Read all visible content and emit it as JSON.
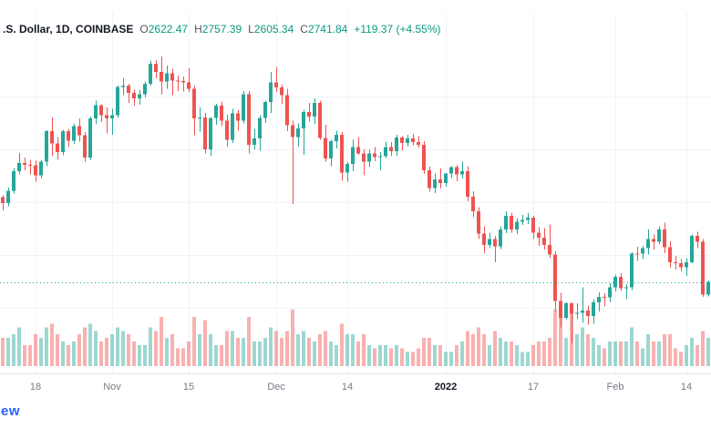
{
  "legend": {
    "symbol_visible": ".S. Dollar, 1D, COINBASE",
    "ohlc": [
      {
        "label": "O",
        "value": "2622.47"
      },
      {
        "label": "H",
        "value": "2757.39"
      },
      {
        "label": "L",
        "value": "2605.34"
      },
      {
        "label": "C",
        "value": "2741.84"
      }
    ],
    "change": "+119.37 (+4.55%)"
  },
  "footer": {
    "logo_partial": "ew"
  },
  "colors": {
    "up": "#26a69a",
    "down": "#ef5350",
    "vol_up": "rgba(38,166,154,0.45)",
    "vol_down": "rgba(239,83,80,0.45)",
    "legend_value_up": "#089981",
    "text_dark": "#131722",
    "axis_text": "#787b86",
    "grid": "#f0f3fa",
    "axis_border": "#e0e3eb",
    "price_line": "#26a69a",
    "logo_blue": "#2962ff"
  },
  "chart_data": {
    "type": "candlestick",
    "interval": "1D",
    "exchange_visible": "COINBASE",
    "price_line_value": 2741.84,
    "price_range_est": [
      2160,
      4878
    ],
    "volume_max": 16,
    "h_grid_prices": [
      2500,
      3000,
      3500,
      4000,
      4500
    ],
    "x_ticks": [
      {
        "index": 6,
        "label": "18"
      },
      {
        "index": 20,
        "label": "Nov"
      },
      {
        "index": 34,
        "label": "15"
      },
      {
        "index": 50,
        "label": "Dec"
      },
      {
        "index": 63,
        "label": "14"
      },
      {
        "index": 81,
        "label": "2022",
        "bold": true
      },
      {
        "index": 97,
        "label": "17"
      },
      {
        "index": 112,
        "label": "Feb"
      },
      {
        "index": 125,
        "label": "14"
      }
    ],
    "columns": [
      "date",
      "open",
      "high",
      "low",
      "close",
      "volume_rel"
    ],
    "candles": [
      [
        "2021-10-12",
        3545,
        3560,
        3420,
        3490,
        8
      ],
      [
        "2021-10-13",
        3490,
        3635,
        3460,
        3605,
        8
      ],
      [
        "2021-10-14",
        3605,
        3820,
        3580,
        3790,
        9
      ],
      [
        "2021-10-15",
        3790,
        3965,
        3760,
        3870,
        11
      ],
      [
        "2021-10-16",
        3870,
        3920,
        3800,
        3850,
        6
      ],
      [
        "2021-10-17",
        3850,
        3900,
        3760,
        3845,
        6
      ],
      [
        "2021-10-18",
        3845,
        3890,
        3690,
        3750,
        9
      ],
      [
        "2021-10-19",
        3750,
        3900,
        3720,
        3880,
        8
      ],
      [
        "2021-10-20",
        3880,
        4180,
        3840,
        4170,
        11
      ],
      [
        "2021-10-21",
        4170,
        4300,
        3935,
        4055,
        12
      ],
      [
        "2021-10-22",
        4055,
        4115,
        3900,
        3970,
        9
      ],
      [
        "2021-10-23",
        3970,
        4185,
        3940,
        4170,
        7
      ],
      [
        "2021-10-24",
        4170,
        4190,
        4020,
        4080,
        6
      ],
      [
        "2021-10-25",
        4080,
        4240,
        4050,
        4220,
        7
      ],
      [
        "2021-10-26",
        4220,
        4290,
        4070,
        4130,
        9
      ],
      [
        "2021-10-27",
        4130,
        4160,
        3875,
        3920,
        11
      ],
      [
        "2021-10-28",
        3920,
        4310,
        3895,
        4290,
        12
      ],
      [
        "2021-10-29",
        4290,
        4460,
        4240,
        4415,
        10
      ],
      [
        "2021-10-30",
        4415,
        4425,
        4255,
        4320,
        7
      ],
      [
        "2021-10-31",
        4320,
        4395,
        4150,
        4290,
        8
      ],
      [
        "2021-11-01",
        4290,
        4380,
        4135,
        4320,
        9
      ],
      [
        "2021-11-02",
        4320,
        4600,
        4300,
        4590,
        11
      ],
      [
        "2021-11-03",
        4590,
        4675,
        4510,
        4600,
        10
      ],
      [
        "2021-11-04",
        4600,
        4620,
        4440,
        4535,
        9
      ],
      [
        "2021-11-05",
        4535,
        4565,
        4410,
        4480,
        7
      ],
      [
        "2021-11-06",
        4480,
        4560,
        4420,
        4520,
        6
      ],
      [
        "2021-11-07",
        4520,
        4640,
        4490,
        4620,
        6
      ],
      [
        "2021-11-08",
        4620,
        4840,
        4600,
        4810,
        11
      ],
      [
        "2021-11-09",
        4810,
        4845,
        4670,
        4730,
        10
      ],
      [
        "2021-11-10",
        4730,
        4878,
        4520,
        4640,
        14
      ],
      [
        "2021-11-11",
        4640,
        4790,
        4570,
        4720,
        8
      ],
      [
        "2021-11-12",
        4720,
        4760,
        4510,
        4650,
        9
      ],
      [
        "2021-11-13",
        4650,
        4695,
        4550,
        4645,
        5
      ],
      [
        "2021-11-14",
        4645,
        4690,
        4545,
        4630,
        5
      ],
      [
        "2021-11-15",
        4630,
        4765,
        4540,
        4570,
        7
      ],
      [
        "2021-11-16",
        4570,
        4600,
        4130,
        4290,
        14
      ],
      [
        "2021-11-17",
        4290,
        4395,
        4165,
        4300,
        9
      ],
      [
        "2021-11-18",
        4300,
        4345,
        3960,
        4000,
        13
      ],
      [
        "2021-11-19",
        4000,
        4300,
        3935,
        4295,
        9
      ],
      [
        "2021-11-20",
        4295,
        4430,
        4230,
        4410,
        6
      ],
      [
        "2021-11-21",
        4410,
        4450,
        4220,
        4270,
        6
      ],
      [
        "2021-11-22",
        4270,
        4325,
        4025,
        4090,
        10
      ],
      [
        "2021-11-23",
        4090,
        4380,
        4060,
        4340,
        10
      ],
      [
        "2021-11-24",
        4340,
        4370,
        4175,
        4270,
        8
      ],
      [
        "2021-11-25",
        4270,
        4550,
        4245,
        4520,
        8
      ],
      [
        "2021-11-26",
        4520,
        4550,
        3960,
        4040,
        14
      ],
      [
        "2021-11-27",
        4040,
        4190,
        4000,
        4100,
        7
      ],
      [
        "2021-11-28",
        4100,
        4320,
        3985,
        4295,
        7
      ],
      [
        "2021-11-29",
        4295,
        4460,
        4250,
        4445,
        8
      ],
      [
        "2021-11-30",
        4445,
        4730,
        4345,
        4630,
        11
      ],
      [
        "2021-12-01",
        4630,
        4780,
        4540,
        4585,
        10
      ],
      [
        "2021-12-02",
        4585,
        4610,
        4430,
        4510,
        8
      ],
      [
        "2021-12-03",
        4510,
        4570,
        4170,
        4225,
        10
      ],
      [
        "2021-12-04",
        4225,
        4270,
        3480,
        4115,
        16
      ],
      [
        "2021-12-05",
        4115,
        4245,
        4025,
        4195,
        9
      ],
      [
        "2021-12-06",
        4195,
        4375,
        3945,
        4350,
        10
      ],
      [
        "2021-12-07",
        4350,
        4440,
        4260,
        4310,
        8
      ],
      [
        "2021-12-08",
        4310,
        4480,
        4235,
        4440,
        7
      ],
      [
        "2021-12-09",
        4440,
        4460,
        4090,
        4105,
        9
      ],
      [
        "2021-12-10",
        4105,
        4230,
        3880,
        3910,
        10
      ],
      [
        "2021-12-11",
        3910,
        4090,
        3840,
        4075,
        7
      ],
      [
        "2021-12-12",
        4075,
        4175,
        4005,
        4135,
        6
      ],
      [
        "2021-12-13",
        4135,
        4160,
        3700,
        3780,
        12
      ],
      [
        "2021-12-14",
        3780,
        3875,
        3690,
        3860,
        9
      ],
      [
        "2021-12-15",
        3860,
        4090,
        3790,
        4020,
        9
      ],
      [
        "2021-12-16",
        4020,
        4115,
        3945,
        3960,
        7
      ],
      [
        "2021-12-17",
        3960,
        4000,
        3750,
        3880,
        9
      ],
      [
        "2021-12-18",
        3880,
        4000,
        3830,
        3960,
        6
      ],
      [
        "2021-12-19",
        3960,
        4020,
        3885,
        3925,
        5
      ],
      [
        "2021-12-20",
        3925,
        3970,
        3800,
        3935,
        6
      ],
      [
        "2021-12-21",
        3935,
        4070,
        3915,
        4020,
        6
      ],
      [
        "2021-12-22",
        4020,
        4065,
        3935,
        3980,
        5
      ],
      [
        "2021-12-23",
        3980,
        4135,
        3935,
        4110,
        6
      ],
      [
        "2021-12-24",
        4110,
        4125,
        3990,
        4060,
        5
      ],
      [
        "2021-12-25",
        4060,
        4135,
        4025,
        4100,
        4
      ],
      [
        "2021-12-26",
        4100,
        4145,
        4035,
        4065,
        4
      ],
      [
        "2021-12-27",
        4065,
        4125,
        4015,
        4040,
        5
      ],
      [
        "2021-12-28",
        4040,
        4075,
        3765,
        3800,
        8
      ],
      [
        "2021-12-29",
        3800,
        3835,
        3595,
        3630,
        8
      ],
      [
        "2021-12-30",
        3630,
        3770,
        3585,
        3715,
        6
      ],
      [
        "2021-12-31",
        3715,
        3815,
        3630,
        3680,
        6
      ],
      [
        "2022-01-01",
        3680,
        3775,
        3645,
        3770,
        4
      ],
      [
        "2022-01-02",
        3770,
        3840,
        3725,
        3830,
        4
      ],
      [
        "2022-01-03",
        3830,
        3845,
        3695,
        3760,
        6
      ],
      [
        "2022-01-04",
        3760,
        3880,
        3720,
        3790,
        7
      ],
      [
        "2022-01-05",
        3790,
        3840,
        3505,
        3550,
        10
      ],
      [
        "2022-01-06",
        3550,
        3600,
        3355,
        3410,
        9
      ],
      [
        "2022-01-07",
        3410,
        3450,
        3150,
        3200,
        11
      ],
      [
        "2022-01-08",
        3200,
        3270,
        3015,
        3090,
        9
      ],
      [
        "2022-01-09",
        3090,
        3210,
        3060,
        3150,
        6
      ],
      [
        "2022-01-10",
        3150,
        3180,
        2930,
        3080,
        10
      ],
      [
        "2022-01-11",
        3080,
        3270,
        3055,
        3240,
        8
      ],
      [
        "2022-01-12",
        3240,
        3410,
        3205,
        3370,
        7
      ],
      [
        "2022-01-13",
        3370,
        3400,
        3210,
        3240,
        7
      ],
      [
        "2022-01-14",
        3240,
        3345,
        3195,
        3310,
        6
      ],
      [
        "2022-01-15",
        3310,
        3375,
        3280,
        3330,
        4
      ],
      [
        "2022-01-16",
        3330,
        3395,
        3290,
        3350,
        4
      ],
      [
        "2022-01-17",
        3350,
        3370,
        3150,
        3210,
        6
      ],
      [
        "2022-01-18",
        3210,
        3260,
        3085,
        3160,
        7
      ],
      [
        "2022-01-19",
        3160,
        3250,
        3050,
        3090,
        7
      ],
      [
        "2022-01-20",
        3090,
        3285,
        2965,
        3000,
        8
      ],
      [
        "2022-01-21",
        3000,
        3030,
        2460,
        2560,
        16
      ],
      [
        "2022-01-22",
        2560,
        2640,
        2310,
        2400,
        14
      ],
      [
        "2022-01-23",
        2400,
        2550,
        2390,
        2540,
        8
      ],
      [
        "2022-01-24",
        2540,
        2545,
        2160,
        2440,
        15
      ],
      [
        "2022-01-25",
        2440,
        2540,
        2390,
        2450,
        9
      ],
      [
        "2022-01-26",
        2450,
        2690,
        2355,
        2470,
        11
      ],
      [
        "2022-01-27",
        2470,
        2520,
        2335,
        2420,
        9
      ],
      [
        "2022-01-28",
        2420,
        2575,
        2345,
        2550,
        8
      ],
      [
        "2022-01-29",
        2550,
        2645,
        2460,
        2600,
        6
      ],
      [
        "2022-01-30",
        2600,
        2635,
        2510,
        2595,
        5
      ],
      [
        "2022-01-31",
        2595,
        2730,
        2550,
        2690,
        7
      ],
      [
        "2022-02-01",
        2690,
        2810,
        2650,
        2790,
        7
      ],
      [
        "2022-02-02",
        2790,
        2825,
        2655,
        2680,
        7
      ],
      [
        "2022-02-03",
        2680,
        2720,
        2580,
        2690,
        7
      ],
      [
        "2022-02-04",
        2690,
        3025,
        2665,
        3010,
        11
      ],
      [
        "2022-02-05",
        3010,
        3075,
        2940,
        3008,
        7
      ],
      [
        "2022-02-06",
        3008,
        3085,
        2960,
        3060,
        5
      ],
      [
        "2022-02-07",
        3060,
        3240,
        3000,
        3150,
        9
      ],
      [
        "2022-02-08",
        3150,
        3190,
        3050,
        3120,
        7
      ],
      [
        "2022-02-09",
        3120,
        3270,
        3100,
        3240,
        7
      ],
      [
        "2022-02-10",
        3240,
        3305,
        3015,
        3070,
        9
      ],
      [
        "2022-02-11",
        3070,
        3125,
        2880,
        2930,
        9
      ],
      [
        "2022-02-12",
        2930,
        2990,
        2860,
        2920,
        5
      ],
      [
        "2022-02-13",
        2920,
        2960,
        2840,
        2880,
        4
      ],
      [
        "2022-02-14",
        2880,
        2965,
        2800,
        2930,
        6
      ],
      [
        "2022-02-15",
        2930,
        3190,
        2920,
        3180,
        8
      ],
      [
        "2022-02-16",
        3180,
        3215,
        3060,
        3120,
        6
      ],
      [
        "2022-02-17",
        3120,
        3150,
        2600,
        2622,
        10
      ],
      [
        "2022-02-18",
        2622.47,
        2757.39,
        2605.34,
        2741.84,
        8
      ]
    ]
  }
}
